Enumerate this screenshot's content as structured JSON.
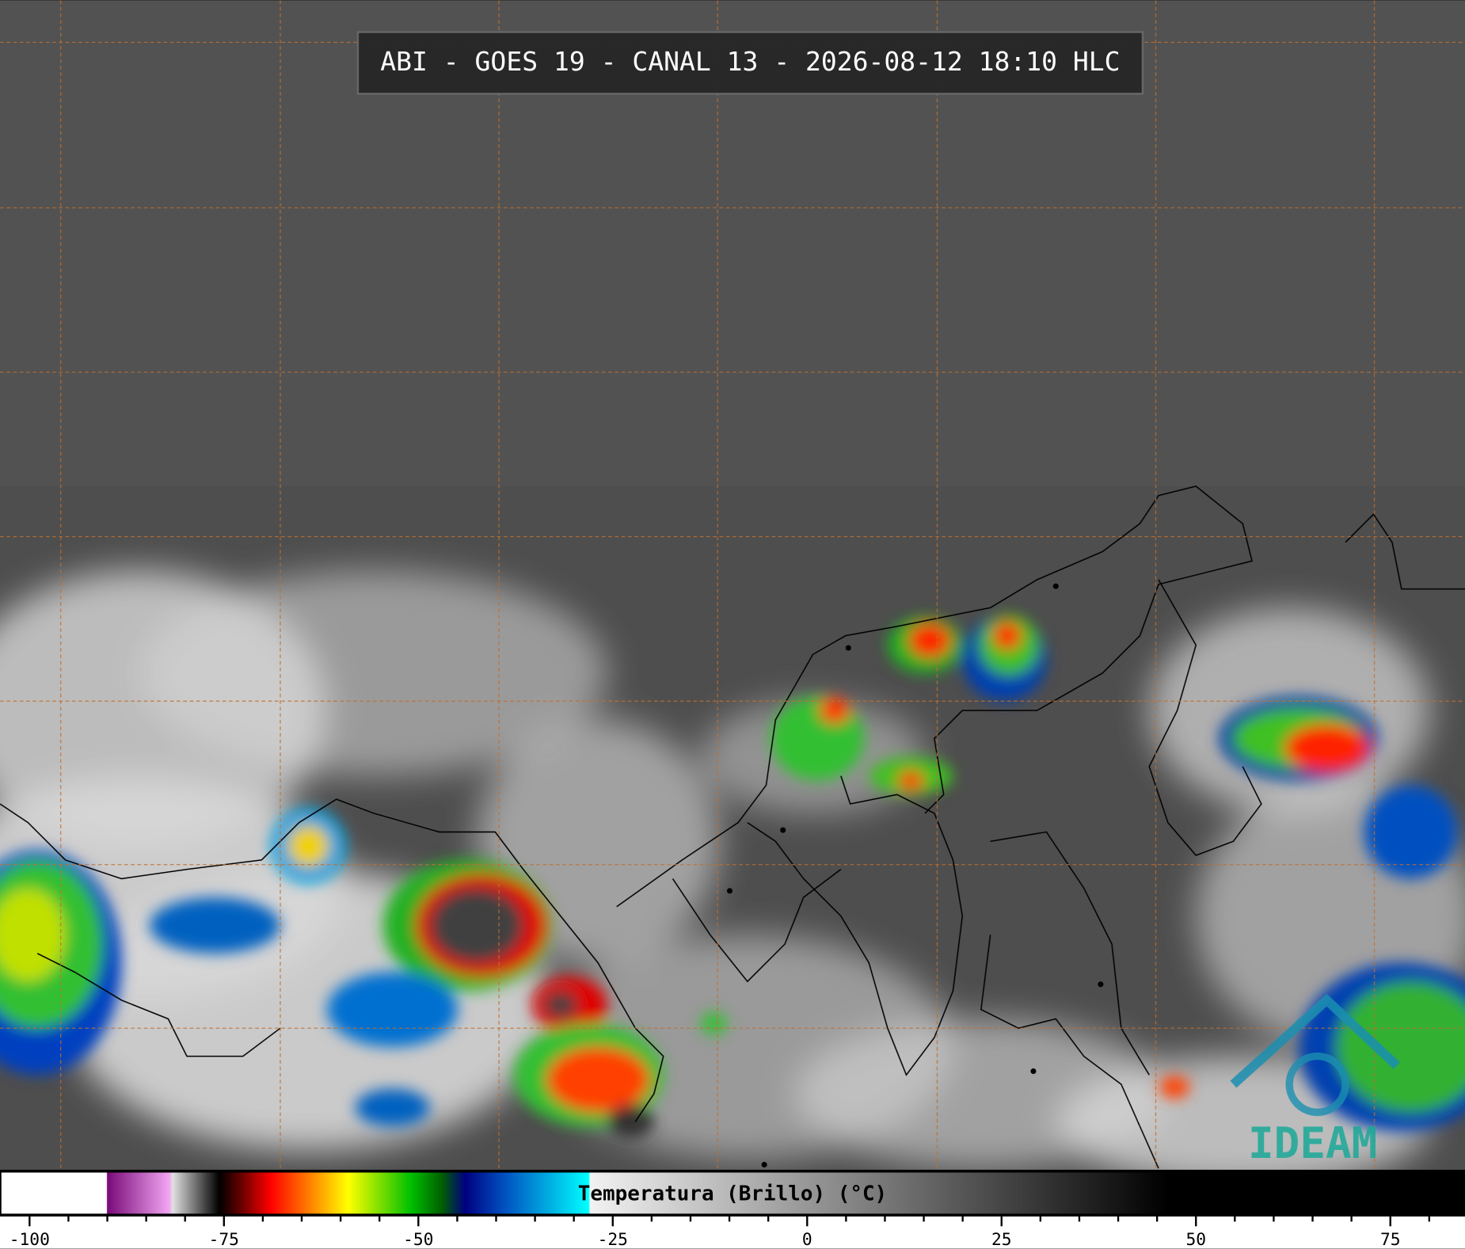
{
  "map": {
    "title": "ABI - GOES 19 - CANAL 13 - 2026-08-12 18:10 HLC",
    "logo": "IDEAM"
  },
  "colorbar": {
    "label": "Temperatura (Brillo) (°C)",
    "xlim": [
      -103.8,
      84.6
    ],
    "xticks": [
      -100,
      -75,
      -50,
      -25,
      0,
      25,
      50,
      75
    ],
    "minor_xticks": [
      -95,
      -90,
      -85,
      -80,
      -70,
      -65,
      -60,
      -55,
      -45,
      -40,
      -35,
      -30,
      -20,
      -15,
      -10,
      -5,
      5,
      10,
      15,
      20,
      30,
      35,
      40,
      45,
      55,
      60,
      65,
      70,
      80
    ],
    "colormap": [
      {
        "value": -103.8,
        "color": "#ffffff"
      },
      {
        "value": -90.1,
        "color": "#ffffff"
      },
      {
        "value": -90,
        "color": "#7a0a7a"
      },
      {
        "value": -82,
        "color": "#f2a6f2"
      },
      {
        "value": -81.6,
        "color": "#e0e0e0"
      },
      {
        "value": -75.6,
        "color": "#000000"
      },
      {
        "value": -73,
        "color": "#600000"
      },
      {
        "value": -69,
        "color": "#ff0000"
      },
      {
        "value": -64,
        "color": "#ff8000"
      },
      {
        "value": -59,
        "color": "#ffff00"
      },
      {
        "value": -51,
        "color": "#00c000"
      },
      {
        "value": -47,
        "color": "#006000"
      },
      {
        "value": -44,
        "color": "#000080"
      },
      {
        "value": -39,
        "color": "#0050c0"
      },
      {
        "value": -28.1,
        "color": "#00ffff"
      },
      {
        "value": -27.9,
        "color": "#f2f2f2"
      },
      {
        "value": 46.4,
        "color": "#000000"
      },
      {
        "value": 84.6,
        "color": "#000000"
      }
    ]
  }
}
